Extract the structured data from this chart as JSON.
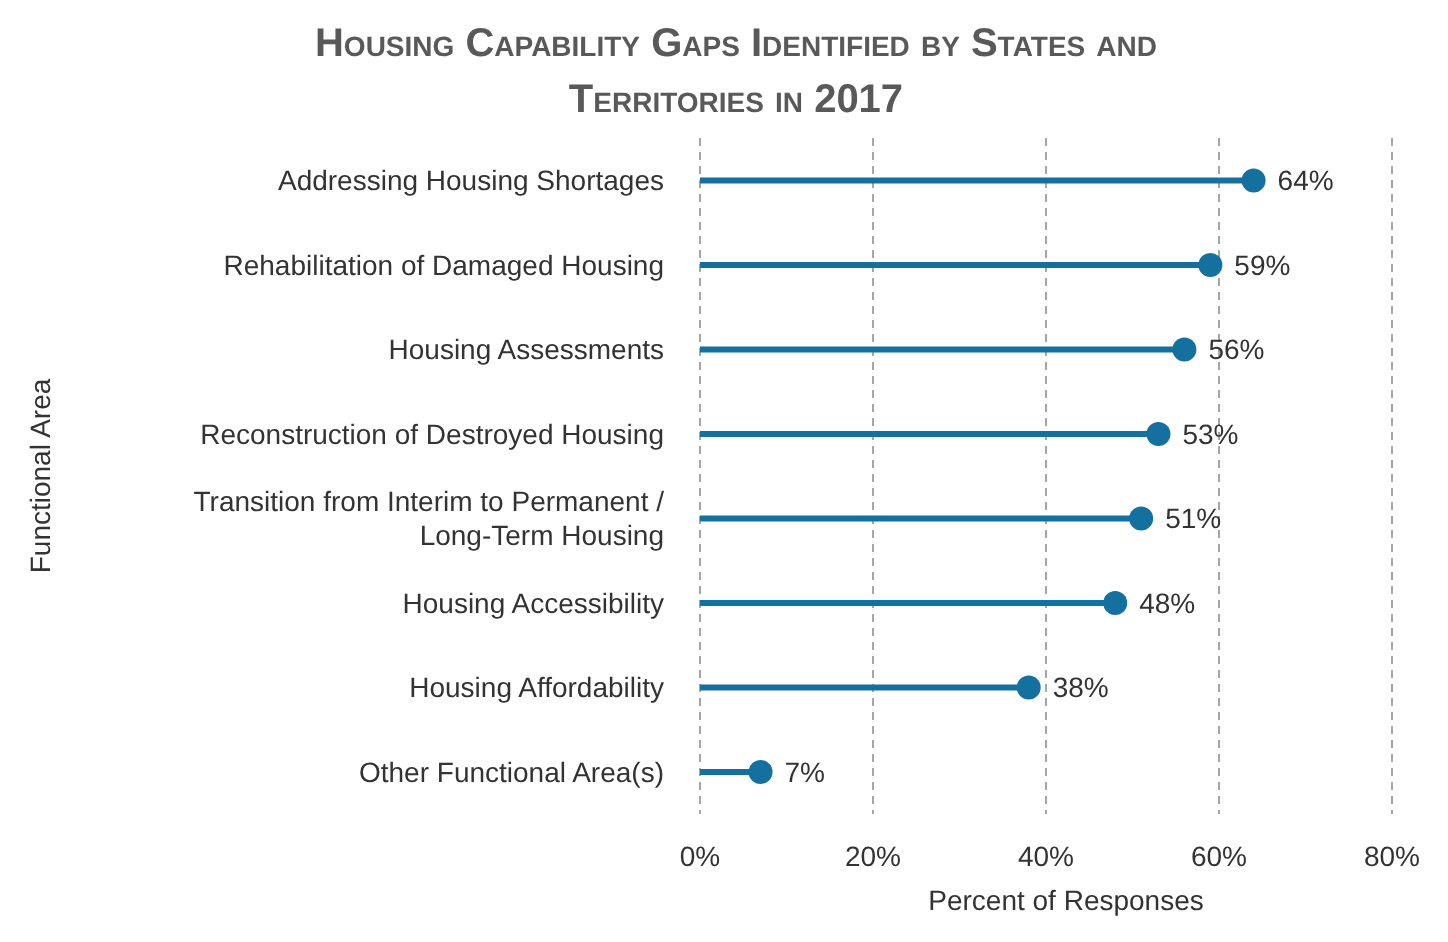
{
  "chart_data": {
    "type": "lollipop",
    "orientation": "horizontal",
    "title": "Housing Capability Gaps Identified by States and Territories in 2017",
    "xlabel": "Percent of Responses",
    "ylabel": "Functional Area",
    "categories": [
      "Addressing Housing Shortages",
      "Rehabilitation of Damaged Housing",
      "Housing Assessments",
      "Reconstruction of Destroyed Housing",
      "Transition from Interim to Permanent / Long-Term Housing",
      "Housing Accessibility",
      "Housing Affordability",
      "Other Functional Area(s)"
    ],
    "values": [
      64,
      59,
      56,
      53,
      51,
      48,
      38,
      7
    ],
    "value_labels": [
      "64%",
      "59%",
      "56%",
      "53%",
      "51%",
      "48%",
      "38%",
      "7%"
    ],
    "color": "#13709f",
    "marker": "circle",
    "grid": "x",
    "legend": false,
    "xlim": [
      0,
      80
    ],
    "xticks": [
      {
        "value": 0,
        "label": "0%"
      },
      {
        "value": 20,
        "label": "20%"
      },
      {
        "value": 40,
        "label": "40%"
      },
      {
        "value": 60,
        "label": "60%"
      },
      {
        "value": 80,
        "label": "80%"
      }
    ]
  }
}
